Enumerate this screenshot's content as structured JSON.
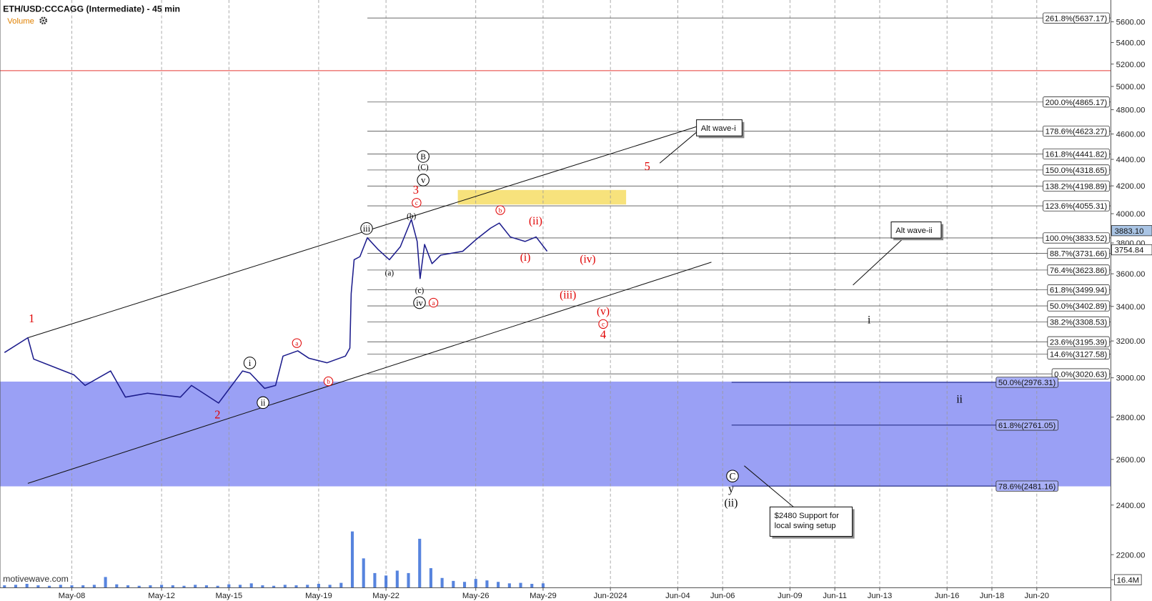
{
  "chart_data": {
    "type": "line",
    "title": "ETH/USD:CCCAGG (Intermediate) - 45 min",
    "subtitle": "Volume",
    "watermark": "motivewave.com",
    "xlim": [
      4.8,
      54.3
    ],
    "xticks": [
      {
        "value": 8,
        "label": "May-08"
      },
      {
        "value": 12,
        "label": "May-12"
      },
      {
        "value": 15,
        "label": "May-15"
      },
      {
        "value": 19,
        "label": "May-19"
      },
      {
        "value": 22,
        "label": "May-22"
      },
      {
        "value": 26,
        "label": "May-26"
      },
      {
        "value": 29,
        "label": "May-29"
      },
      {
        "value": 32,
        "label": "Jun-2024"
      },
      {
        "value": 35,
        "label": "Jun-04"
      },
      {
        "value": 37,
        "label": "Jun-06"
      },
      {
        "value": 40,
        "label": "Jun-09"
      },
      {
        "value": 42,
        "label": "Jun-11"
      },
      {
        "value": 44,
        "label": "Jun-13"
      },
      {
        "value": 47,
        "label": "Jun-16"
      },
      {
        "value": 49,
        "label": "Jun-18"
      },
      {
        "value": 51,
        "label": "Jun-20"
      }
    ],
    "ylim": [
      2076,
      5818
    ],
    "log_scale": true,
    "yticks": [
      {
        "value": 2200,
        "label": "2200.00"
      },
      {
        "value": 2400,
        "label": "2400.00"
      },
      {
        "value": 2600,
        "label": "2600.00"
      },
      {
        "value": 2800,
        "label": "2800.00"
      },
      {
        "value": 3000,
        "label": "3000.00"
      },
      {
        "value": 3200,
        "label": "3200.00"
      },
      {
        "value": 3400,
        "label": "3400.00"
      },
      {
        "value": 3600,
        "label": "3600.00"
      },
      {
        "value": 3800,
        "label": "3800.00"
      },
      {
        "value": 4000,
        "label": "4000.00"
      },
      {
        "value": 4200,
        "label": "4200.00"
      },
      {
        "value": 4400,
        "label": "4400.00"
      },
      {
        "value": 4600,
        "label": "4600.00"
      },
      {
        "value": 4800,
        "label": "4800.00"
      },
      {
        "value": 5000,
        "label": "5000.00"
      },
      {
        "value": 5200,
        "label": "5200.00"
      },
      {
        "value": 5400,
        "label": "5400.00"
      },
      {
        "value": 5600,
        "label": "5600.00"
      }
    ],
    "series": [
      {
        "color": "#1c1c8c",
        "x": [
          5.0,
          6.04,
          6.3,
          8.1,
          8.59,
          9.73,
          10.39,
          11.37,
          12.84,
          13.33,
          14.54,
          15.61,
          15.94,
          16.59,
          17.08,
          17.41,
          18.07,
          18.56,
          19.37,
          20.19,
          20.39,
          20.45,
          20.58,
          20.84,
          21.17,
          21.66,
          22.15,
          22.64,
          23.13,
          23.39,
          23.52,
          23.72,
          24.05,
          24.44,
          25.42,
          26.07,
          26.66,
          27.05,
          27.54,
          28.2,
          28.69,
          29.18
        ],
        "values": [
          3136,
          3218,
          3100,
          3015,
          2960,
          3036,
          2900,
          2920,
          2900,
          2960,
          2870,
          3036,
          3025,
          2945,
          2960,
          3116,
          3145,
          3105,
          3080,
          3116,
          3160,
          3478,
          3690,
          3710,
          3835,
          3755,
          3690,
          3775,
          3960,
          3810,
          3570,
          3790,
          3665,
          3720,
          3745,
          3830,
          3900,
          3935,
          3840,
          3810,
          3840,
          3745
        ]
      }
    ],
    "volume": {
      "color": "#3a6fd8",
      "x": [
        5,
        5.5,
        6,
        6.5,
        7,
        7.5,
        8,
        8.5,
        9,
        9.5,
        10,
        10.5,
        11,
        11.5,
        12,
        12.5,
        13,
        13.5,
        14,
        14.5,
        15,
        15.5,
        16,
        16.5,
        17,
        17.5,
        18,
        18.5,
        19,
        19.5,
        20,
        20.5,
        21,
        21.5,
        22,
        22.5,
        23,
        23.5,
        24,
        24.5,
        25,
        25.5,
        26,
        26.5,
        27,
        27.5,
        28,
        28.5,
        29
      ],
      "values": [
        5,
        6,
        8,
        5,
        4,
        6,
        5,
        5,
        6,
        22,
        7,
        5,
        4,
        5,
        6,
        5,
        4,
        6,
        5,
        4,
        7,
        6,
        9,
        5,
        4,
        6,
        5,
        6,
        8,
        6,
        10,
        115,
        60,
        30,
        25,
        35,
        30,
        100,
        40,
        20,
        14,
        12,
        18,
        15,
        12,
        9,
        10,
        8,
        9
      ],
      "ylim": [
        0,
        120
      ],
      "value_label": {
        "value": 16.4,
        "label": "16.4M"
      }
    },
    "price_labels": [
      {
        "value": 3883.1,
        "label": "3883.10",
        "color": "#a9c4e4"
      },
      {
        "value": 3754.84,
        "label": "3754.84",
        "color": "#ffffff"
      }
    ],
    "horizontal_lines": [
      {
        "value": 5140,
        "color": "#e53935"
      }
    ],
    "zones": [
      {
        "ylim": [
          2480,
          2980
        ],
        "color": "#9aa0f5"
      },
      {
        "xlim": [
          25.2,
          32.7
        ],
        "ylim": [
          4065,
          4170
        ],
        "color": "#f7e27c"
      }
    ],
    "trendlines": [
      {
        "x": [
          6.04,
          35.85
        ],
        "values": [
          3218,
          4660
        ]
      },
      {
        "x": [
          6.04,
          36.5
        ],
        "values": [
          2493,
          3674
        ]
      }
    ],
    "fib_levels": [
      {
        "value": 5637.17,
        "label": "261.8%(5637.17)"
      },
      {
        "value": 4865.17,
        "label": "200.0%(4865.17)"
      },
      {
        "value": 4623.27,
        "label": "178.6%(4623.27)"
      },
      {
        "value": 4441.82,
        "label": "161.8%(4441.82)"
      },
      {
        "value": 4318.65,
        "label": "150.0%(4318.65)"
      },
      {
        "value": 4198.89,
        "label": "138.2%(4198.89)"
      },
      {
        "value": 4055.31,
        "label": "123.6%(4055.31)"
      },
      {
        "value": 3833.52,
        "label": "100.0%(3833.52)"
      },
      {
        "value": 3731.66,
        "label": "88.7%(3731.66)"
      },
      {
        "value": 3623.86,
        "label": "76.4%(3623.86)"
      },
      {
        "value": 3499.94,
        "label": "61.8%(3499.94)"
      },
      {
        "value": 3402.89,
        "label": "50.0%(3402.89)"
      },
      {
        "value": 3308.53,
        "label": "38.2%(3308.53)"
      },
      {
        "value": 3195.39,
        "label": "23.6%(3195.39)"
      },
      {
        "value": 3127.58,
        "label": "14.6%(3127.58)"
      },
      {
        "value": 3020.63,
        "label": "0.0%(3020.63)"
      }
    ],
    "fib_levels_lower": [
      {
        "value": 2976.31,
        "label": "50.0%(2976.31)"
      },
      {
        "value": 2761.05,
        "label": "61.8%(2761.05)"
      },
      {
        "value": 2481.16,
        "label": "78.6%(2481.16)"
      }
    ],
    "wave_labels": [
      {
        "text": "1",
        "color": "#e00000",
        "circled": false
      },
      {
        "text": "2",
        "color": "#e00000",
        "circled": false
      },
      {
        "text": "3",
        "color": "#e00000",
        "circled": false
      },
      {
        "text": "4",
        "color": "#e00000",
        "circled": false
      },
      {
        "text": "5",
        "color": "#e00000",
        "circled": false
      },
      {
        "text": "i",
        "color": "#000000",
        "circled": true
      },
      {
        "text": "ii",
        "color": "#000000",
        "circled": true
      },
      {
        "text": "iii",
        "color": "#000000",
        "circled": true
      },
      {
        "text": "iv",
        "color": "#000000",
        "circled": true
      },
      {
        "text": "v",
        "color": "#000000",
        "circled": true
      },
      {
        "text": "(C)",
        "color": "#000000",
        "circled": false
      },
      {
        "text": "B",
        "color": "#000000",
        "circled": true
      },
      {
        "text": "a",
        "color": "#e00000",
        "circled": true
      },
      {
        "text": "b",
        "color": "#e00000",
        "circled": true
      },
      {
        "text": "c",
        "color": "#e00000",
        "circled": true
      },
      {
        "text": "a",
        "color": "#e00000",
        "circled": true
      },
      {
        "text": "b",
        "color": "#e00000",
        "circled": true
      },
      {
        "text": "c",
        "color": "#e00000",
        "circled": true
      },
      {
        "text": "(b)",
        "color": "#000000",
        "circled": false
      },
      {
        "text": "(a)",
        "color": "#000000",
        "circled": false
      },
      {
        "text": "(c)",
        "color": "#000000",
        "circled": false
      },
      {
        "text": "(ii)",
        "color": "#e00000",
        "circled": false
      },
      {
        "text": "(i)",
        "color": "#e00000",
        "circled": false
      },
      {
        "text": "(iv)",
        "color": "#e00000",
        "circled": false
      },
      {
        "text": "(iii)",
        "color": "#e00000",
        "circled": false
      },
      {
        "text": "(v)",
        "color": "#e00000",
        "circled": false
      },
      {
        "text": "i",
        "color": "#000000",
        "circled": false
      },
      {
        "text": "ii",
        "color": "#000000",
        "circled": false
      },
      {
        "text": "C",
        "color": "#000000",
        "circled": true
      },
      {
        "text": "y",
        "color": "#000000",
        "circled": false
      },
      {
        "text": "(ii)",
        "color": "#000000",
        "circled": false
      }
    ],
    "callouts": [
      {
        "lines": [
          "Alt wave-i"
        ]
      },
      {
        "lines": [
          "Alt wave-ii"
        ]
      },
      {
        "lines": [
          "$2480 Support for",
          "local swing setup"
        ]
      }
    ]
  }
}
